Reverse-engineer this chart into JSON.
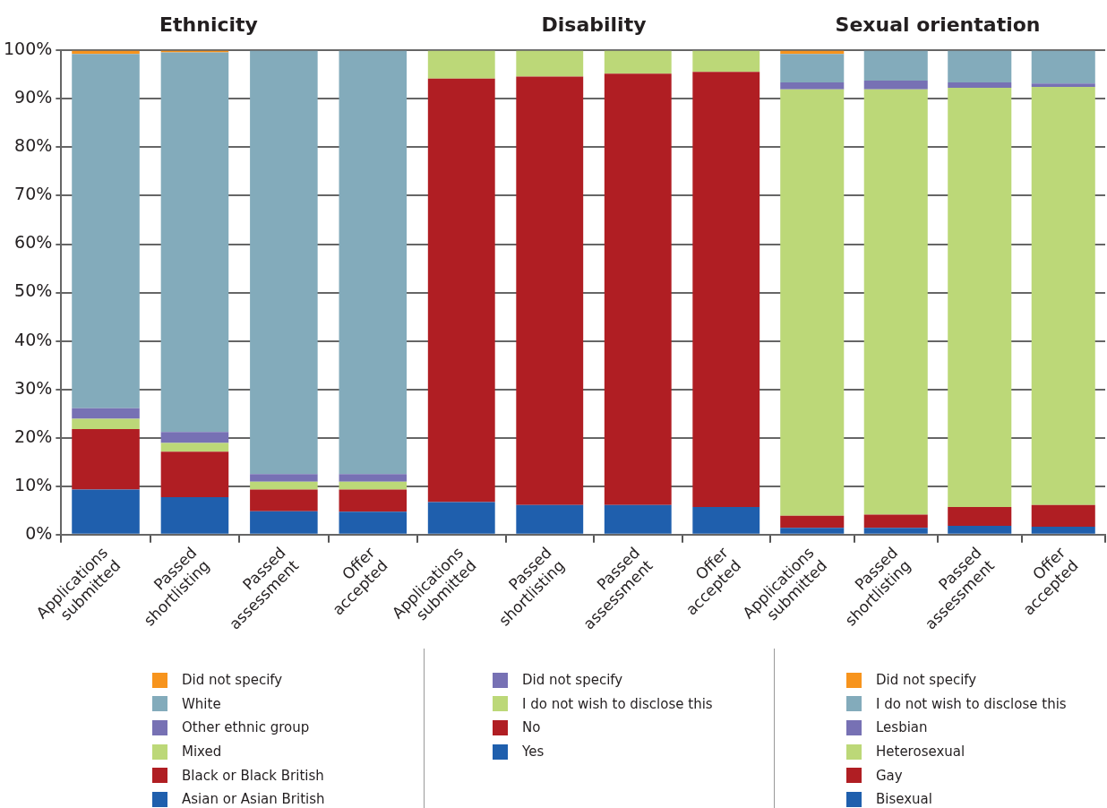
{
  "chart_data": [
    {
      "type": "bar",
      "stacked": true,
      "title": "Ethnicity",
      "categories": [
        "Applications submitted",
        "Passed shortlisting",
        "Passed assessment",
        "Offer accepted"
      ],
      "ylim": [
        0,
        100
      ],
      "yticks": [
        {
          "value": 0,
          "label": "0%"
        },
        {
          "value": 10,
          "label": "10%"
        },
        {
          "value": 20,
          "label": "20%"
        },
        {
          "value": 30,
          "label": "30%"
        },
        {
          "value": 40,
          "label": "40%"
        },
        {
          "value": 50,
          "label": "50%"
        },
        {
          "value": 60,
          "label": "60%"
        },
        {
          "value": 70,
          "label": "70%"
        },
        {
          "value": 80,
          "label": "80%"
        },
        {
          "value": 90,
          "label": "90%"
        },
        {
          "value": 100,
          "label": "100%"
        }
      ],
      "grid": "y",
      "legend": "bottom",
      "series": [
        {
          "name": "Asian or Asian British",
          "color": "#1f5fad",
          "values": [
            9.3,
            7.7,
            4.8,
            4.7
          ]
        },
        {
          "name": "Black or Black British",
          "color": "#b01e23",
          "values": [
            12.5,
            9.4,
            4.5,
            4.6
          ]
        },
        {
          "name": "Mixed",
          "color": "#bcd878",
          "values": [
            2.1,
            1.8,
            1.6,
            1.6
          ]
        },
        {
          "name": "Other ethnic group",
          "color": "#7771b4",
          "values": [
            2.2,
            2.3,
            1.6,
            1.6
          ]
        },
        {
          "name": "White",
          "color": "#83abbb",
          "values": [
            73.2,
            78.4,
            87.5,
            87.5
          ]
        },
        {
          "name": "Did not specify",
          "color": "#f7941d",
          "values": [
            0.7,
            0.4,
            0,
            0
          ]
        }
      ]
    },
    {
      "type": "bar",
      "stacked": true,
      "title": "Disability",
      "categories": [
        "Applications submitted",
        "Passed shortlisting",
        "Passed assessment",
        "Offer accepted"
      ],
      "ylim": [
        0,
        100
      ],
      "yticks": [
        {
          "value": 0,
          "label": null
        },
        {
          "value": 10,
          "label": null
        },
        {
          "value": 20,
          "label": null
        },
        {
          "value": 30,
          "label": null
        },
        {
          "value": 40,
          "label": null
        },
        {
          "value": 50,
          "label": null
        },
        {
          "value": 60,
          "label": null
        },
        {
          "value": 70,
          "label": null
        },
        {
          "value": 80,
          "label": null
        },
        {
          "value": 90,
          "label": null
        },
        {
          "value": 100,
          "label": null
        }
      ],
      "grid": "y",
      "legend": "bottom",
      "tick_labels": "x",
      "series": [
        {
          "name": "Yes",
          "color": "#1f5fad",
          "values": [
            6.7,
            6.1,
            6.1,
            5.7
          ]
        },
        {
          "name": "No",
          "color": "#b01e23",
          "values": [
            87.5,
            88.5,
            89.1,
            89.9
          ]
        },
        {
          "name": "I do not wish to disclose this",
          "color": "#bcd878",
          "values": [
            5.8,
            5.4,
            4.8,
            4.4
          ]
        },
        {
          "name": "Did not specify",
          "color": "#7771b4",
          "values": [
            0,
            0,
            0,
            0
          ]
        }
      ]
    },
    {
      "type": "bar",
      "stacked": true,
      "title": "Sexual orientation",
      "categories": [
        "Applications submitted",
        "Passed shortlisting",
        "Passed assessment",
        "Offer accepted"
      ],
      "ylim": [
        0,
        100
      ],
      "yticks": [
        {
          "value": 0,
          "label": null
        },
        {
          "value": 10,
          "label": null
        },
        {
          "value": 20,
          "label": null
        },
        {
          "value": 30,
          "label": null
        },
        {
          "value": 40,
          "label": null
        },
        {
          "value": 50,
          "label": null
        },
        {
          "value": 60,
          "label": null
        },
        {
          "value": 70,
          "label": null
        },
        {
          "value": 80,
          "label": null
        },
        {
          "value": 90,
          "label": null
        },
        {
          "value": 100,
          "label": null
        }
      ],
      "grid": "y",
      "legend": "bottom",
      "tick_labels": "x",
      "series": [
        {
          "name": "Bisexual",
          "color": "#1f5fad",
          "values": [
            1.4,
            1.4,
            1.8,
            1.6
          ]
        },
        {
          "name": "Gay",
          "color": "#b01e23",
          "values": [
            2.5,
            2.7,
            3.9,
            4.5
          ]
        },
        {
          "name": "Heterosexual",
          "color": "#bcd878",
          "values": [
            88.1,
            87.9,
            86.6,
            86.4
          ]
        },
        {
          "name": "Lesbian",
          "color": "#7771b4",
          "values": [
            1.4,
            1.8,
            1.1,
            0.7
          ]
        },
        {
          "name": "I do not wish to disclose this",
          "color": "#83abbb",
          "values": [
            5.9,
            6.2,
            6.6,
            6.8
          ]
        },
        {
          "name": "Did not specify",
          "color": "#f7941d",
          "values": [
            0.7,
            0,
            0,
            0
          ]
        }
      ]
    }
  ]
}
